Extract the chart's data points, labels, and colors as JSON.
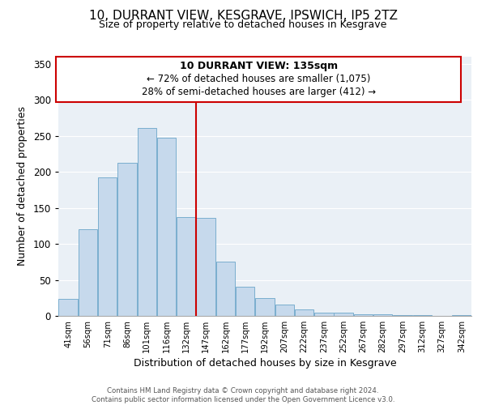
{
  "title": "10, DURRANT VIEW, KESGRAVE, IPSWICH, IP5 2TZ",
  "subtitle": "Size of property relative to detached houses in Kesgrave",
  "xlabel": "Distribution of detached houses by size in Kesgrave",
  "ylabel": "Number of detached properties",
  "bar_labels": [
    "41sqm",
    "56sqm",
    "71sqm",
    "86sqm",
    "101sqm",
    "116sqm",
    "132sqm",
    "147sqm",
    "162sqm",
    "177sqm",
    "192sqm",
    "207sqm",
    "222sqm",
    "237sqm",
    "252sqm",
    "267sqm",
    "282sqm",
    "297sqm",
    "312sqm",
    "327sqm",
    "342sqm"
  ],
  "bar_values": [
    24,
    120,
    192,
    213,
    261,
    248,
    137,
    136,
    75,
    40,
    25,
    16,
    9,
    5,
    5,
    2,
    2,
    1,
    1,
    0,
    1
  ],
  "bar_color": "#c6d9ec",
  "bar_edge_color": "#7aaece",
  "vline_color": "#cc0000",
  "ylim": [
    0,
    360
  ],
  "yticks": [
    0,
    50,
    100,
    150,
    200,
    250,
    300,
    350
  ],
  "annotation_title": "10 DURRANT VIEW: 135sqm",
  "annotation_line1": "← 72% of detached houses are smaller (1,075)",
  "annotation_line2": "28% of semi-detached houses are larger (412) →",
  "footer1": "Contains HM Land Registry data © Crown copyright and database right 2024.",
  "footer2": "Contains public sector information licensed under the Open Government Licence v3.0.",
  "background_color": "#eaf0f6"
}
